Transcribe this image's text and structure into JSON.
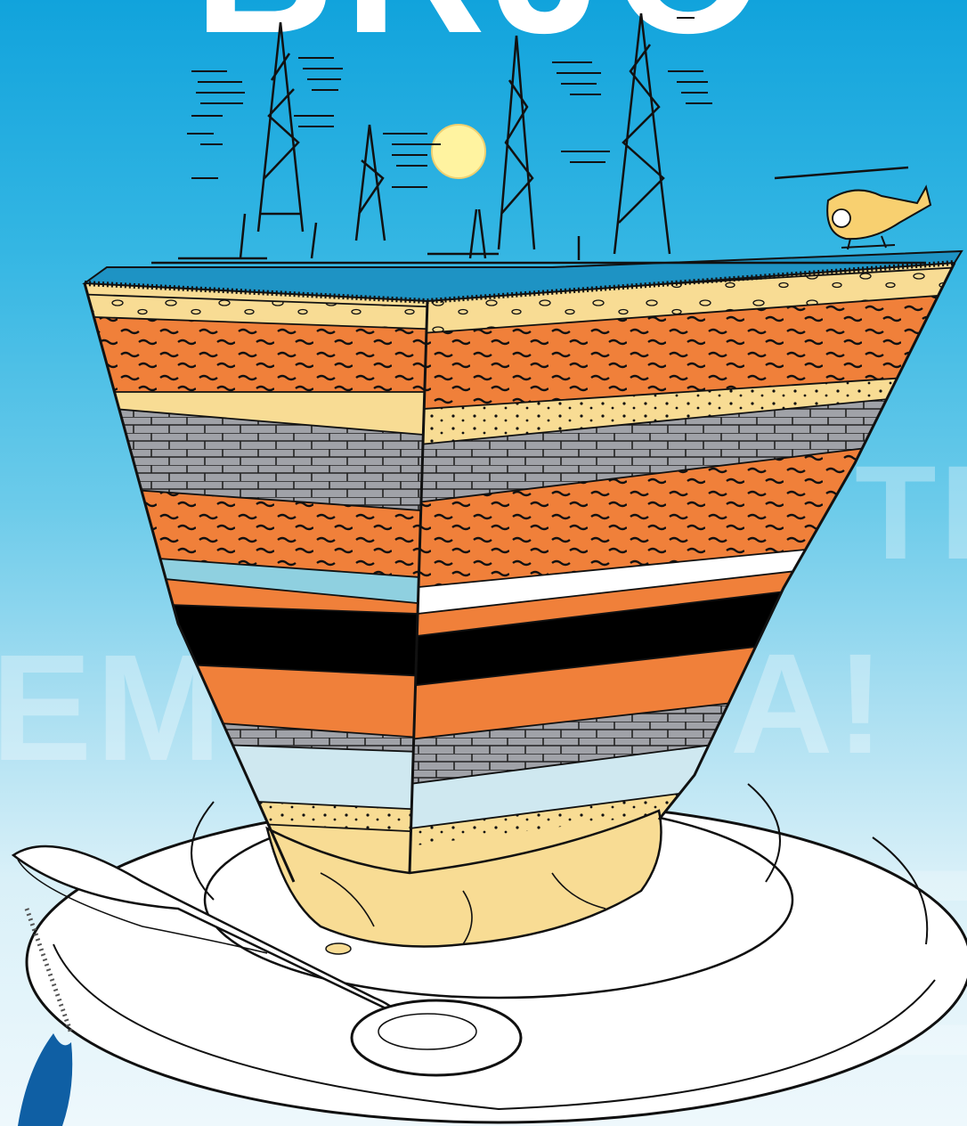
{
  "poster": {
    "title": "BRJO",
    "background_letters": [
      "TE",
      "EM",
      "A!",
      "E"
    ]
  },
  "colors": {
    "sky_top": "#11a3dc",
    "sky_bottom": "#eef8fc",
    "orange_layer": "#f0803a",
    "sand_layer": "#f8dc94",
    "limestone_layer": "#a0a2a8",
    "coal_layer": "#000000",
    "light_blue_layer": "#cfe8f0",
    "plate": "#ffffff",
    "line": "#101010",
    "sun": "#fff3a0",
    "helicopter": "#f8d070",
    "logo_blue": "#0f5fa4"
  }
}
